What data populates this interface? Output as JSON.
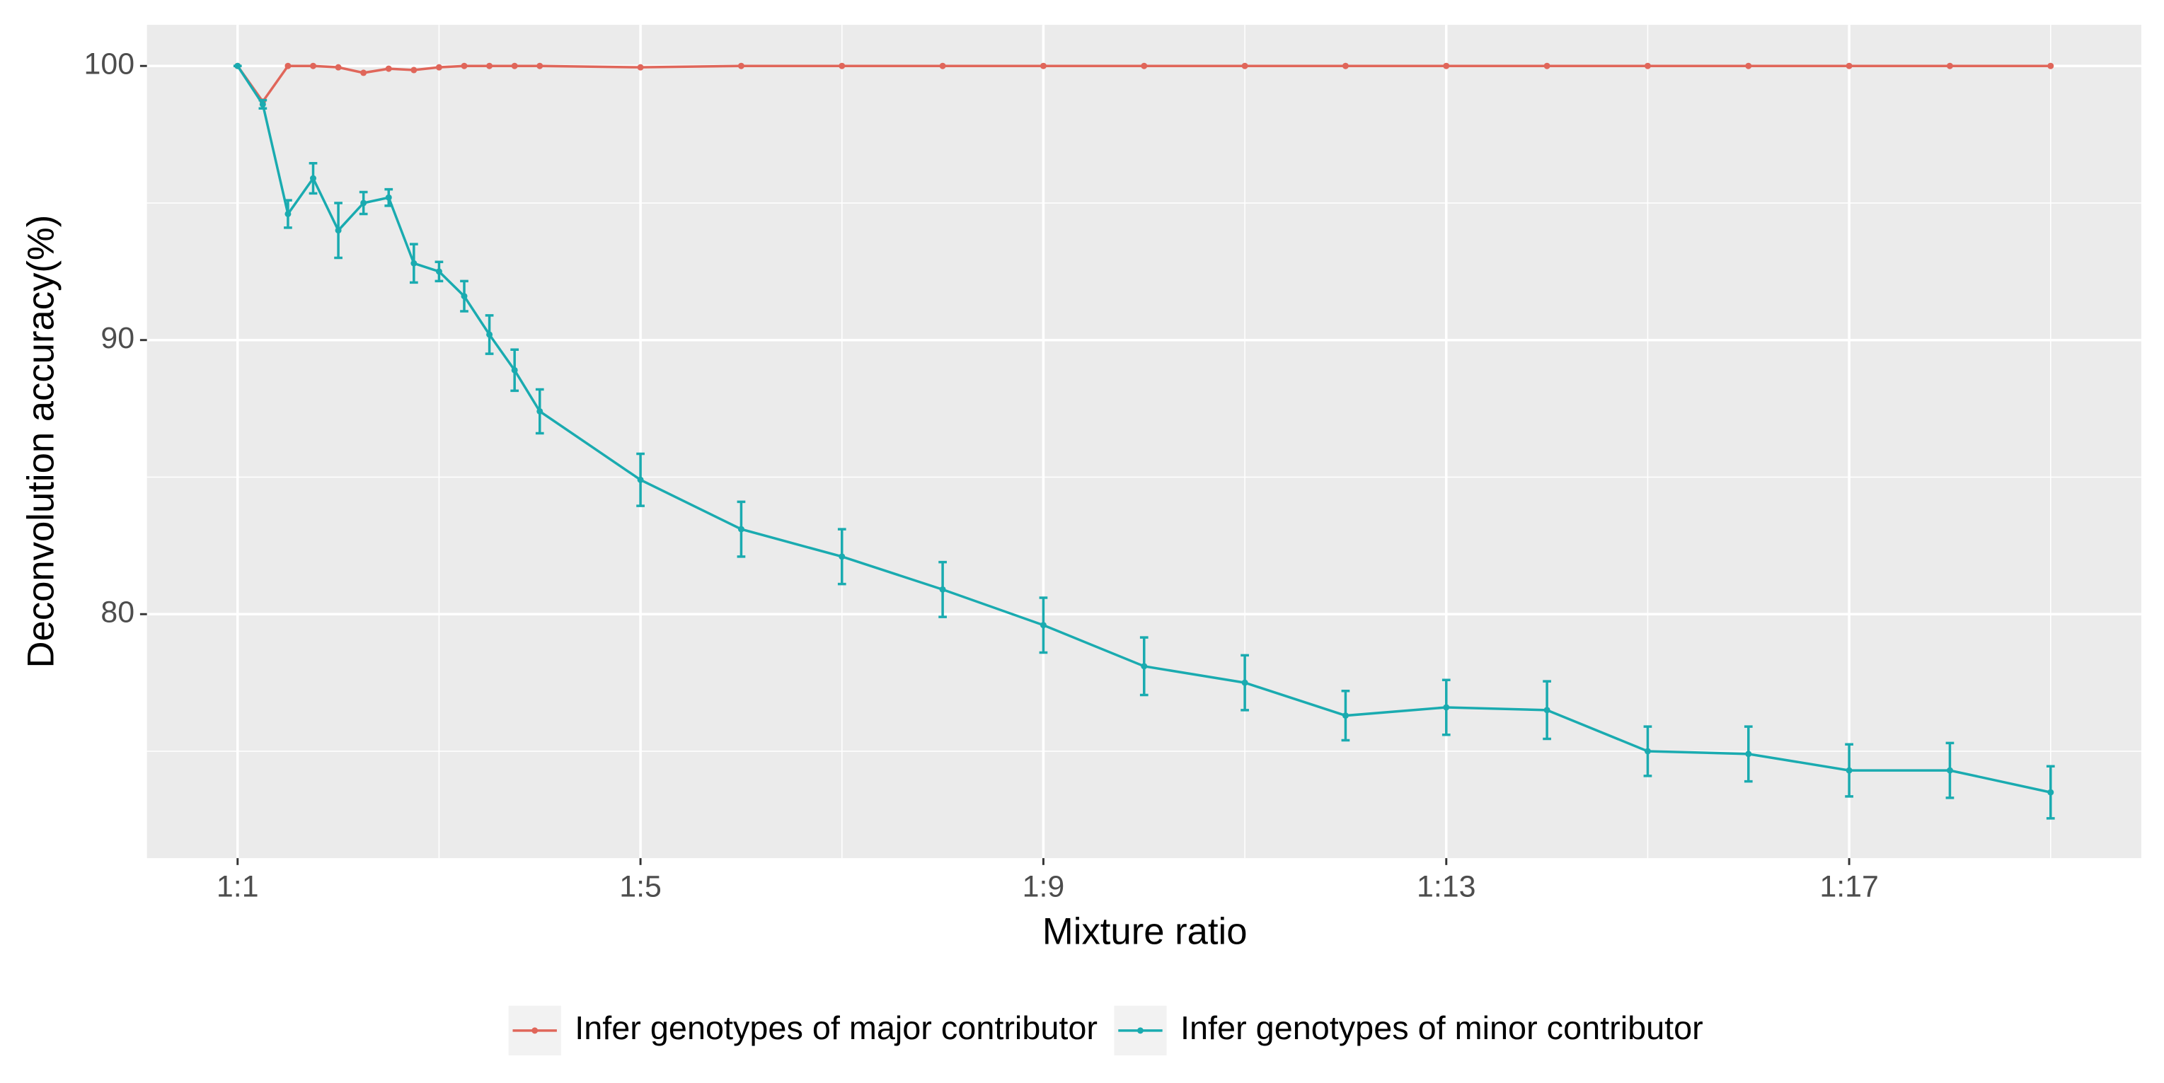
{
  "chart_data": {
    "type": "line",
    "x_label": "Mixture ratio",
    "y_label": "Deconvolution accuracy(%)",
    "x": [
      1,
      1.25,
      1.5,
      1.75,
      2,
      2.25,
      2.5,
      2.75,
      3,
      3.25,
      3.5,
      3.75,
      4,
      5,
      6,
      7,
      8,
      9,
      10,
      11,
      12,
      13,
      14,
      15,
      16,
      17,
      18,
      19
    ],
    "series": [
      {
        "name": "Infer genotypes of major contributor",
        "color": "#e0665a",
        "values": [
          100,
          98.7,
          100,
          100,
          99.95,
          99.75,
          99.9,
          99.85,
          99.95,
          100,
          100,
          100,
          100,
          99.95,
          100,
          100,
          100,
          100,
          100,
          100,
          100,
          100,
          100,
          100,
          100,
          100,
          100,
          100
        ]
      },
      {
        "name": "Infer genotypes of minor contributor",
        "color": "#1aabb0",
        "values": [
          100,
          98.6,
          94.6,
          95.9,
          94.0,
          95.0,
          95.2,
          92.8,
          92.5,
          91.6,
          90.2,
          88.9,
          87.4,
          84.9,
          83.1,
          82.1,
          80.9,
          79.6,
          78.1,
          77.5,
          76.3,
          76.6,
          76.5,
          75.0,
          74.9,
          74.3,
          74.3,
          73.5
        ],
        "errors": [
          0,
          0.15,
          0.5,
          0.55,
          1.0,
          0.4,
          0.3,
          0.7,
          0.35,
          0.55,
          0.7,
          0.75,
          0.8,
          0.95,
          1.0,
          1.0,
          1.0,
          1.0,
          1.05,
          1.0,
          0.9,
          1.0,
          1.05,
          0.9,
          1.0,
          0.95,
          1.0,
          0.95
        ]
      }
    ],
    "xlim": [
      0.1,
      19.9
    ],
    "ylim": [
      71.1,
      101.5
    ],
    "xticks": [
      {
        "value": 1,
        "label": "1:1"
      },
      {
        "value": 5,
        "label": "1:5"
      },
      {
        "value": 9,
        "label": "1:9"
      },
      {
        "value": 13,
        "label": "1:13"
      },
      {
        "value": 17,
        "label": "1:17"
      }
    ],
    "yticks": [
      80,
      90,
      100
    ],
    "x_minor_grid": [
      3,
      7,
      11,
      15,
      19
    ],
    "y_minor_grid": [
      75,
      85,
      95
    ],
    "grid": true,
    "legend": "bottom"
  }
}
